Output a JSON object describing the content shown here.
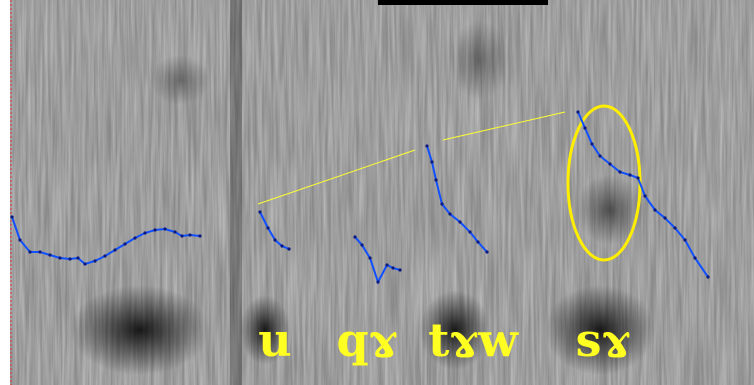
{
  "syllables": [
    "u",
    "qɤ",
    "tɤw",
    "sɤ"
  ]
}
